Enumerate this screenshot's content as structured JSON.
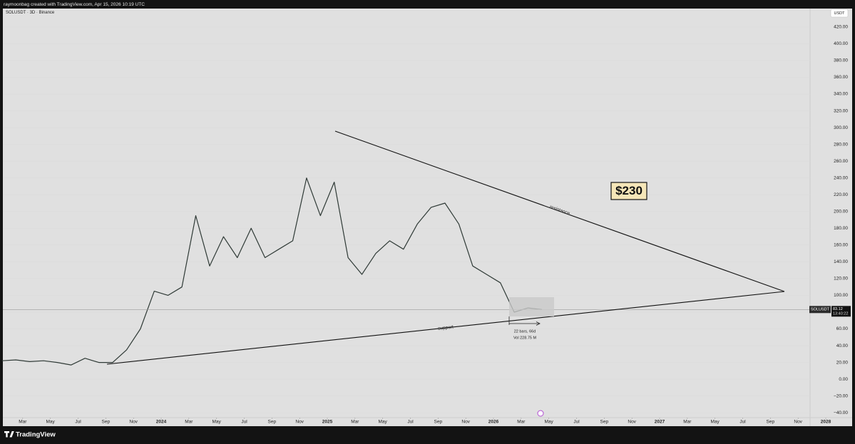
{
  "header": "raymoonbag created with TradingView.com, Apr 15, 2026 10:19 UTC",
  "brand": "TradingView",
  "chart_data": {
    "type": "line",
    "title": "SOLUSDT · 3D · Binance",
    "currency": "USDT",
    "x": [
      "2023-01",
      "2023-02",
      "2023-03",
      "2023-04",
      "2023-05",
      "2023-06",
      "2023-07",
      "2023-08",
      "2023-09",
      "2023-10",
      "2023-11",
      "2023-12",
      "2024-01",
      "2024-02",
      "2024-03",
      "2024-04",
      "2024-05",
      "2024-06",
      "2024-07",
      "2024-08",
      "2024-09",
      "2024-10",
      "2024-11",
      "2024-12",
      "2025-01",
      "2025-02",
      "2025-03",
      "2025-04",
      "2025-05",
      "2025-06",
      "2025-07",
      "2025-08",
      "2025-09",
      "2025-10",
      "2025-11",
      "2025-12",
      "2026-01",
      "2026-02",
      "2026-03",
      "2026-04"
    ],
    "series": [
      {
        "name": "SOLUSDT",
        "color": "#2f3a36",
        "values": [
          22,
          23,
          21,
          22,
          20,
          17,
          25,
          20,
          20,
          35,
          60,
          105,
          100,
          110,
          195,
          135,
          170,
          145,
          180,
          145,
          155,
          165,
          240,
          195,
          235,
          145,
          125,
          150,
          165,
          155,
          185,
          205,
          210,
          185,
          135,
          125,
          115,
          80,
          85,
          83
        ]
      }
    ],
    "ylim": [
      -56,
      442
    ],
    "yticks": [
      {
        "value": -40,
        "label": "−40.00"
      },
      {
        "value": -20,
        "label": "−20.00"
      },
      {
        "value": 0,
        "label": "0.00"
      },
      {
        "value": 20,
        "label": "20.00"
      },
      {
        "value": 40,
        "label": "40.00"
      },
      {
        "value": 60,
        "label": "60.00"
      },
      {
        "value": 80,
        "label": "80.00"
      },
      {
        "value": 100,
        "label": "100.00"
      },
      {
        "value": 120,
        "label": "120.00"
      },
      {
        "value": 140,
        "label": "140.00"
      },
      {
        "value": 160,
        "label": "160.00"
      },
      {
        "value": 180,
        "label": "180.00"
      },
      {
        "value": 200,
        "label": "200.00"
      },
      {
        "value": 220,
        "label": "220.00"
      },
      {
        "value": 240,
        "label": "240.00"
      },
      {
        "value": 260,
        "label": "260.00"
      },
      {
        "value": 280,
        "label": "280.00"
      },
      {
        "value": 300,
        "label": "300.00"
      },
      {
        "value": 320,
        "label": "320.00"
      },
      {
        "value": 340,
        "label": "340.00"
      },
      {
        "value": 360,
        "label": "360.00"
      },
      {
        "value": 380,
        "label": "380.00"
      },
      {
        "value": 400,
        "label": "400.00"
      },
      {
        "value": 420,
        "label": "420.00"
      }
    ],
    "xticks": [
      {
        "value": "2023-03",
        "label": "Mar"
      },
      {
        "value": "2023-05",
        "label": "May"
      },
      {
        "value": "2023-07",
        "label": "Jul"
      },
      {
        "value": "2023-09",
        "label": "Sep"
      },
      {
        "value": "2023-11",
        "label": "Nov"
      },
      {
        "value": "2024-01",
        "label": "2024"
      },
      {
        "value": "2024-03",
        "label": "Mar"
      },
      {
        "value": "2024-05",
        "label": "May"
      },
      {
        "value": "2024-07",
        "label": "Jul"
      },
      {
        "value": "2024-09",
        "label": "Sep"
      },
      {
        "value": "2024-11",
        "label": "Nov"
      },
      {
        "value": "2025-01",
        "label": "2025"
      },
      {
        "value": "2025-03",
        "label": "Mar"
      },
      {
        "value": "2025-05",
        "label": "May"
      },
      {
        "value": "2025-07",
        "label": "Jul"
      },
      {
        "value": "2025-09",
        "label": "Sep"
      },
      {
        "value": "2025-11",
        "label": "Nov"
      },
      {
        "value": "2026-01",
        "label": "2026"
      },
      {
        "value": "2026-03",
        "label": "Mar"
      },
      {
        "value": "2026-05",
        "label": "May"
      },
      {
        "value": "2026-07",
        "label": "Jul"
      },
      {
        "value": "2026-09",
        "label": "Sep"
      },
      {
        "value": "2026-11",
        "label": "Nov"
      },
      {
        "value": "2027-01",
        "label": "2027"
      },
      {
        "value": "2027-03",
        "label": "Mar"
      },
      {
        "value": "2027-05",
        "label": "May"
      },
      {
        "value": "2027-07",
        "label": "Jul"
      },
      {
        "value": "2027-09",
        "label": "Sep"
      },
      {
        "value": "2027-11",
        "label": "Nov"
      },
      {
        "value": "2028-01",
        "label": "2028"
      }
    ],
    "last_price": 83.12,
    "countdown": "13:40:22",
    "annotations": {
      "resistance": "resistance",
      "support": "support",
      "target": "$230",
      "measure_bars": "22 bars, 66d",
      "measure_volume": "Vol 228.75 M"
    }
  }
}
